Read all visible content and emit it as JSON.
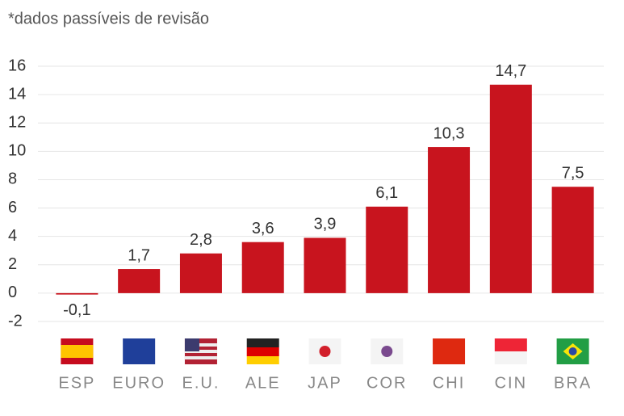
{
  "chart_data": {
    "type": "bar",
    "subtitle": "*dados passíveis de revisão",
    "categories": [
      "ESP",
      "EURO",
      "E.U.",
      "ALE",
      "JAP",
      "COR",
      "CHI",
      "CIN",
      "BRA"
    ],
    "values": [
      -0.1,
      1.7,
      2.8,
      3.6,
      3.9,
      6.1,
      10.3,
      14.7,
      7.5
    ],
    "value_labels": [
      "-0,1",
      "1,7",
      "2,8",
      "3,6",
      "3,9",
      "6,1",
      "10,3",
      "14,7",
      "7,5"
    ],
    "color": "#c8141e",
    "ylim": [
      -2,
      16
    ],
    "yticks": [
      -2,
      0,
      2,
      4,
      6,
      8,
      10,
      12,
      14,
      16
    ],
    "grid": true
  }
}
